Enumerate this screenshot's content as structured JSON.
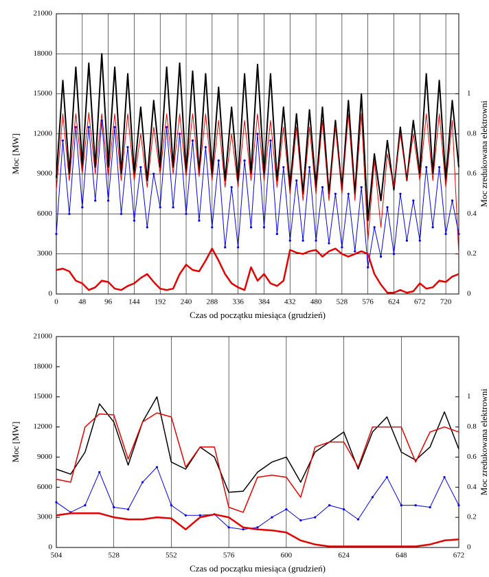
{
  "chart_data": [
    {
      "type": "line",
      "xlabel": "Czas od początku miesiąca (grudzień)",
      "ylabel": "Moc [MW]",
      "y2label": "Moc zredukowana elektrowni",
      "x": [
        0,
        12,
        24,
        36,
        48,
        60,
        72,
        84,
        96,
        108,
        120,
        132,
        144,
        156,
        168,
        180,
        192,
        204,
        216,
        228,
        240,
        252,
        264,
        276,
        288,
        300,
        312,
        324,
        336,
        348,
        360,
        372,
        384,
        396,
        408,
        420,
        432,
        444,
        456,
        468,
        480,
        492,
        504,
        516,
        528,
        540,
        552,
        564,
        576,
        588,
        600,
        612,
        624,
        636,
        648,
        660,
        672,
        684,
        696,
        708,
        720,
        732,
        744
      ],
      "xlim": [
        0,
        744
      ],
      "xticks": [
        0,
        48,
        96,
        144,
        192,
        240,
        288,
        336,
        384,
        432,
        480,
        528,
        576,
        624,
        672,
        720
      ],
      "ylim": [
        0,
        21000
      ],
      "yticks": [
        0,
        3000,
        6000,
        9000,
        12000,
        15000,
        18000,
        21000
      ],
      "y2lim": [
        0,
        1.4
      ],
      "y2ticks": [
        0,
        0.2,
        0.4,
        0.6,
        0.8,
        1
      ],
      "grid": {
        "x": true,
        "y": true
      },
      "series": [
        {
          "color": "#000000",
          "linewidth": 2,
          "values": [
            8700,
            16000,
            9000,
            17000,
            9500,
            17300,
            9500,
            18000,
            9500,
            17000,
            9000,
            16500,
            9000,
            14000,
            8500,
            14500,
            9500,
            17000,
            9500,
            17300,
            9000,
            16700,
            9000,
            16500,
            9000,
            15500,
            8500,
            14000,
            8500,
            16500,
            9000,
            17200,
            9000,
            16500,
            8500,
            14000,
            8000,
            13500,
            7500,
            13800,
            8000,
            14000,
            7500,
            13000,
            7800,
            14500,
            7500,
            15000,
            5500,
            10500,
            7000,
            11500,
            7800,
            12500,
            8500,
            13000,
            9000,
            16500,
            9000,
            16000,
            8500,
            14500,
            9500
          ]
        },
        {
          "color": "#e00000",
          "linewidth": 1,
          "values": [
            7800,
            13500,
            8500,
            13500,
            9000,
            13600,
            9000,
            13500,
            8800,
            13500,
            8500,
            13500,
            8500,
            12000,
            8000,
            12500,
            9000,
            13500,
            9000,
            13500,
            8800,
            13500,
            8800,
            13500,
            8500,
            13000,
            8000,
            12000,
            8000,
            13000,
            8500,
            13500,
            8500,
            13000,
            8000,
            12500,
            7500,
            12500,
            7000,
            12500,
            7500,
            13000,
            7000,
            12500,
            7500,
            13500,
            7000,
            13500,
            4000,
            10000,
            5000,
            10500,
            8000,
            12000,
            8500,
            12000,
            8500,
            13500,
            8500,
            13500,
            8000,
            13000,
            3000
          ]
        },
        {
          "color": "#0000e0",
          "linewidth": 1,
          "marker": true,
          "values": [
            4500,
            11500,
            6000,
            12500,
            6500,
            12500,
            7000,
            13000,
            7000,
            12500,
            6000,
            11000,
            5500,
            9500,
            5000,
            9000,
            6500,
            12500,
            6500,
            12000,
            6000,
            11500,
            5500,
            11000,
            5000,
            10000,
            3500,
            8000,
            3500,
            10000,
            5000,
            12000,
            5000,
            11500,
            4500,
            9500,
            4000,
            8500,
            4000,
            9500,
            4000,
            8000,
            3800,
            7500,
            3500,
            7500,
            3200,
            8000,
            2000,
            5000,
            2800,
            6500,
            3000,
            7500,
            4000,
            7000,
            4000,
            9500,
            5000,
            9500,
            4500,
            7000,
            4500
          ]
        },
        {
          "color": "#e00000",
          "linewidth": 2.5,
          "values": [
            1800,
            1900,
            1700,
            1000,
            800,
            300,
            500,
            1000,
            900,
            400,
            300,
            600,
            800,
            1200,
            1500,
            900,
            400,
            300,
            400,
            1500,
            2200,
            1800,
            1700,
            2500,
            3400,
            2500,
            1500,
            800,
            500,
            300,
            2000,
            1000,
            1500,
            800,
            600,
            1000,
            3300,
            3100,
            3000,
            3200,
            3300,
            2800,
            3200,
            3400,
            3000,
            2800,
            3000,
            3200,
            3000,
            1500,
            700,
            100,
            100,
            300,
            100,
            200,
            800,
            400,
            500,
            1000,
            900,
            1300,
            1500
          ]
        }
      ]
    },
    {
      "type": "line",
      "xlabel": "Czas od początku miesiąca (grudzień)",
      "ylabel": "Moc [MW]",
      "y2label": "Moc zredukowana elektrowni",
      "x": [
        504,
        510,
        516,
        522,
        528,
        534,
        540,
        546,
        552,
        558,
        564,
        570,
        576,
        582,
        588,
        594,
        600,
        606,
        612,
        618,
        624,
        630,
        636,
        642,
        648,
        654,
        660,
        666,
        672
      ],
      "xlim": [
        504,
        672
      ],
      "xticks": [
        504,
        528,
        552,
        576,
        600,
        624,
        648,
        672
      ],
      "ylim": [
        0,
        21000
      ],
      "yticks": [
        0,
        3000,
        6000,
        9000,
        12000,
        15000,
        18000,
        21000
      ],
      "y2lim": [
        0,
        1.4
      ],
      "y2ticks": [
        0,
        0.2,
        0.4,
        0.6,
        0.8,
        1
      ],
      "grid": {
        "x": true,
        "y": false
      },
      "series": [
        {
          "color": "#000000",
          "linewidth": 1.5,
          "values": [
            7800,
            7300,
            9500,
            14300,
            12500,
            8200,
            12500,
            15000,
            8500,
            7800,
            10000,
            9000,
            5500,
            5600,
            7500,
            8500,
            9000,
            6500,
            9500,
            10500,
            11500,
            7800,
            11500,
            13000,
            9500,
            8700,
            10000,
            13500,
            9800
          ]
        },
        {
          "color": "#e00000",
          "linewidth": 1.5,
          "values": [
            6800,
            6500,
            12000,
            13300,
            13200,
            8800,
            12500,
            13400,
            13000,
            8000,
            10000,
            10000,
            4000,
            3500,
            7000,
            7200,
            7000,
            5000,
            10000,
            10500,
            10500,
            8000,
            12000,
            12000,
            12000,
            8500,
            11500,
            12000,
            11500
          ]
        },
        {
          "color": "#0000e0",
          "linewidth": 1,
          "marker": true,
          "values": [
            4500,
            3500,
            4200,
            7500,
            4000,
            3800,
            6500,
            8000,
            4200,
            3200,
            3200,
            3300,
            2000,
            1800,
            2000,
            3000,
            3800,
            2700,
            3000,
            4200,
            3800,
            2800,
            5000,
            7000,
            4200,
            4200,
            4000,
            7000,
            4200
          ]
        },
        {
          "color": "#e00000",
          "linewidth": 2.5,
          "values": [
            3200,
            3400,
            3400,
            3400,
            3000,
            2800,
            2800,
            3000,
            2900,
            1800,
            3000,
            3300,
            3000,
            2000,
            1800,
            1700,
            1500,
            700,
            300,
            100,
            100,
            100,
            100,
            100,
            100,
            100,
            300,
            700,
            800
          ]
        }
      ]
    }
  ]
}
